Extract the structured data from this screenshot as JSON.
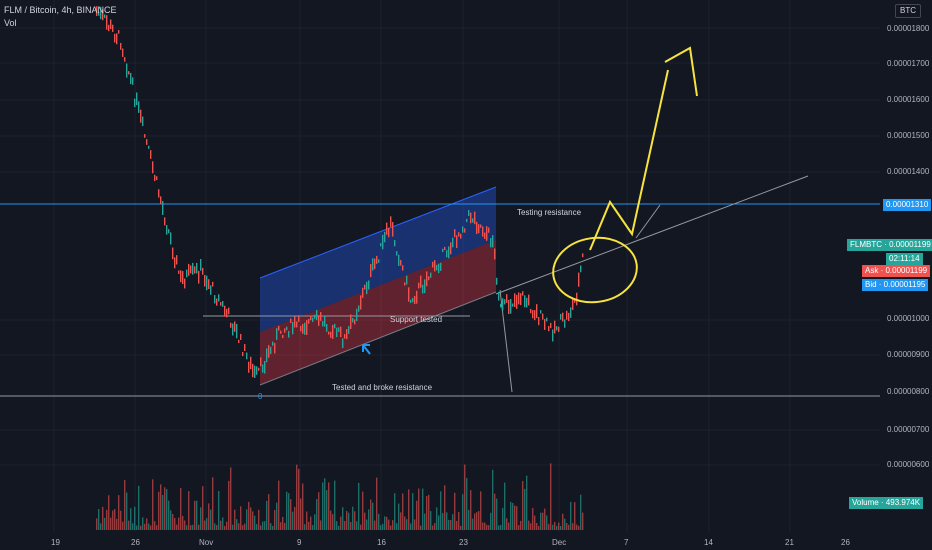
{
  "header": {
    "symbol_line": "FLM / Bitcoin, 4h, BINANCE",
    "volume_label": "Vol"
  },
  "currency_button": "BTC",
  "price_axis": {
    "ticks": [
      "0.00001800",
      "0.00001700",
      "0.00001600",
      "0.00001500",
      "0.00001400",
      "0.00001310",
      "0.00001000",
      "0.00000900",
      "0.00000800",
      "0.00000700",
      "0.00000600"
    ]
  },
  "time_axis": {
    "ticks": [
      "19",
      "26",
      "Nov",
      "9",
      "16",
      "23",
      "Dec",
      "7",
      "14",
      "21",
      "26"
    ]
  },
  "tags": {
    "resistance": "0.00001310",
    "symbol": "FLMBTC",
    "symbol_price": "0.00001199",
    "countdown": "02:11:14",
    "ask_label": "Ask",
    "ask_price": "0.00001199",
    "bid_label": "Bid",
    "bid_price": "0.00001195",
    "volume_label": "Volume",
    "volume_value": "493.974K"
  },
  "annotations": {
    "testing_resistance": "Testing resistance",
    "support_tested": "Support tested",
    "tested_broke": "Tested and broke resistance",
    "zero_mark": "0"
  },
  "colors": {
    "background": "#131722",
    "up": "#26a69a",
    "down": "#ef5350",
    "resistance_line": "#2196f3",
    "channel_upper": "#2962ff",
    "channel_lower": "#f23645",
    "drawing": "#f7e33f"
  }
}
